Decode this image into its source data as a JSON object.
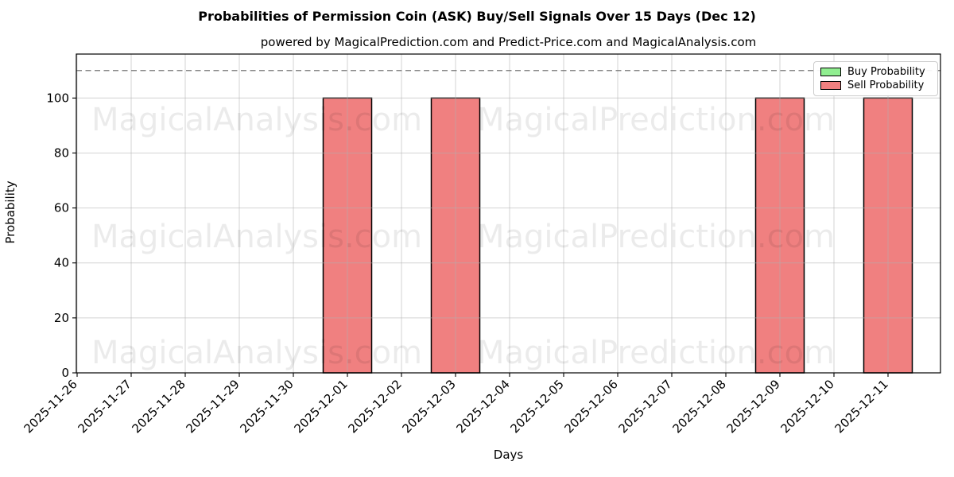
{
  "title": "Probabilities of Permission Coin (ASK) Buy/Sell Signals Over 15 Days (Dec 12)",
  "subtitle": "powered by MagicalPrediction.com and Predict-Price.com and MagicalAnalysis.com",
  "chart_data": {
    "type": "bar",
    "title": "Probabilities of Permission Coin (ASK) Buy/Sell Signals Over 15 Days (Dec 12)",
    "subtitle": "powered by MagicalPrediction.com and Predict-Price.com and MagicalAnalysis.com",
    "xlabel": "Days",
    "ylabel": "Probability",
    "categories": [
      "2025-11-26",
      "2025-11-27",
      "2025-11-28",
      "2025-11-29",
      "2025-11-30",
      "2025-12-01",
      "2025-12-02",
      "2025-12-03",
      "2025-12-04",
      "2025-12-05",
      "2025-12-06",
      "2025-12-07",
      "2025-12-08",
      "2025-12-09",
      "2025-12-10",
      "2025-12-11"
    ],
    "series": [
      {
        "name": "Buy Probability",
        "color": "#90ee90",
        "values": [
          0,
          0,
          0,
          0,
          0,
          0,
          0,
          0,
          0,
          0,
          0,
          0,
          0,
          0,
          0,
          0
        ]
      },
      {
        "name": "Sell Probability",
        "color": "#f08080",
        "values": [
          0,
          0,
          0,
          0,
          0,
          100,
          0,
          100,
          0,
          0,
          0,
          0,
          0,
          100,
          0,
          100
        ]
      }
    ],
    "ylim": [
      0,
      116
    ],
    "yticks": [
      0,
      20,
      40,
      60,
      80,
      100
    ],
    "grid": true,
    "legend_position": "upper right",
    "dashed_line_y": 110,
    "bar_edge_color": "#000000",
    "grid_color": "#b0b0b0",
    "dashed_line_color": "#7a7a7a",
    "watermark": {
      "left_text": "MagicalAnalysis.com",
      "right_text": "MagicalPrediction.com",
      "color": "rgba(0,0,0,0.08)"
    }
  }
}
